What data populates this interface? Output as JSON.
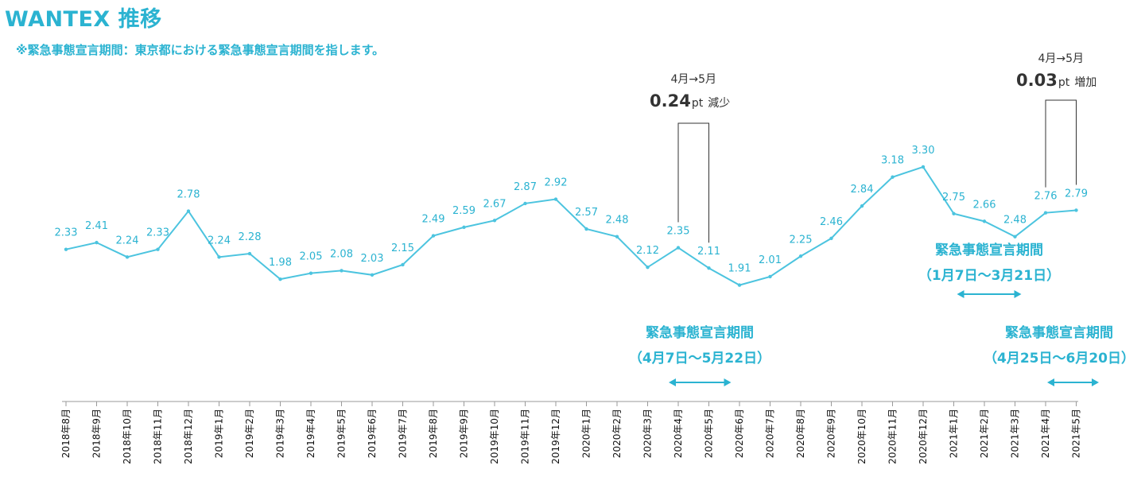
{
  "title": "WANTEX 推移",
  "subtitle": "※緊急事態宣言期間：東京都における緊急事態宣言期間を指します。",
  "chart_data": {
    "type": "line",
    "title": "WANTEX 推移",
    "categories": [
      "2018年8月",
      "2018年9月",
      "2018年10月",
      "2018年11月",
      "2018年12月",
      "2019年1月",
      "2019年2月",
      "2019年3月",
      "2019年4月",
      "2019年5月",
      "2019年6月",
      "2019年7月",
      "2019年8月",
      "2019年9月",
      "2019年10月",
      "2019年11月",
      "2019年12月",
      "2020年1月",
      "2020年2月",
      "2020年3月",
      "2020年4月",
      "2020年5月",
      "2020年6月",
      "2020年7月",
      "2020年8月",
      "2020年9月",
      "2020年10月",
      "2020年11月",
      "2020年12月",
      "2021年1月",
      "2021年2月",
      "2021年3月",
      "2021年4月",
      "2021年5月"
    ],
    "values": [
      2.33,
      2.41,
      2.24,
      2.33,
      2.78,
      2.24,
      2.28,
      1.98,
      2.05,
      2.08,
      2.03,
      2.15,
      2.49,
      2.59,
      2.67,
      2.87,
      2.92,
      2.57,
      2.48,
      2.12,
      2.35,
      2.11,
      1.91,
      2.01,
      2.25,
      2.46,
      2.84,
      3.18,
      3.3,
      2.75,
      2.66,
      2.48,
      2.76,
      2.79
    ],
    "labels": [
      "2.33",
      "2.41",
      "2.24",
      "2.33",
      "2.78",
      "2.24",
      "2.28",
      "1.98",
      "2.05",
      "2.08",
      "2.03",
      "2.15",
      "2.49",
      "2.59",
      "2.67",
      "2.87",
      "2.92",
      "2.57",
      "2.48",
      "2.12",
      "2.35",
      "2.11",
      "1.91",
      "2.01",
      "2.25",
      "2.46",
      "2.84",
      "3.18",
      "3.30",
      "2.75",
      "2.66",
      "2.48",
      "2.76",
      "2.79"
    ],
    "color": "#4cc4df",
    "annotations": [
      {
        "from_index": 20,
        "to_index": 21,
        "line1": "4月→5月",
        "value": "0.24",
        "unit": "pt",
        "label": "減少"
      },
      {
        "from_index": 32,
        "to_index": 33,
        "line1": "4月→5月",
        "value": "0.03",
        "unit": "pt",
        "label": "増加"
      }
    ],
    "periods": [
      {
        "title": "緊急事態宣言期間",
        "range": "（4月7日～5月22日）",
        "from_index": 20,
        "to_index": 21
      },
      {
        "title": "緊急事態宣言期間",
        "range": "（1月7日～3月21日）",
        "from_index": 29,
        "to_index": 31
      },
      {
        "title": "緊急事態宣言期間",
        "range": "（4月25日～6月20日）",
        "from_index": 32,
        "to_index": 33
      }
    ]
  }
}
